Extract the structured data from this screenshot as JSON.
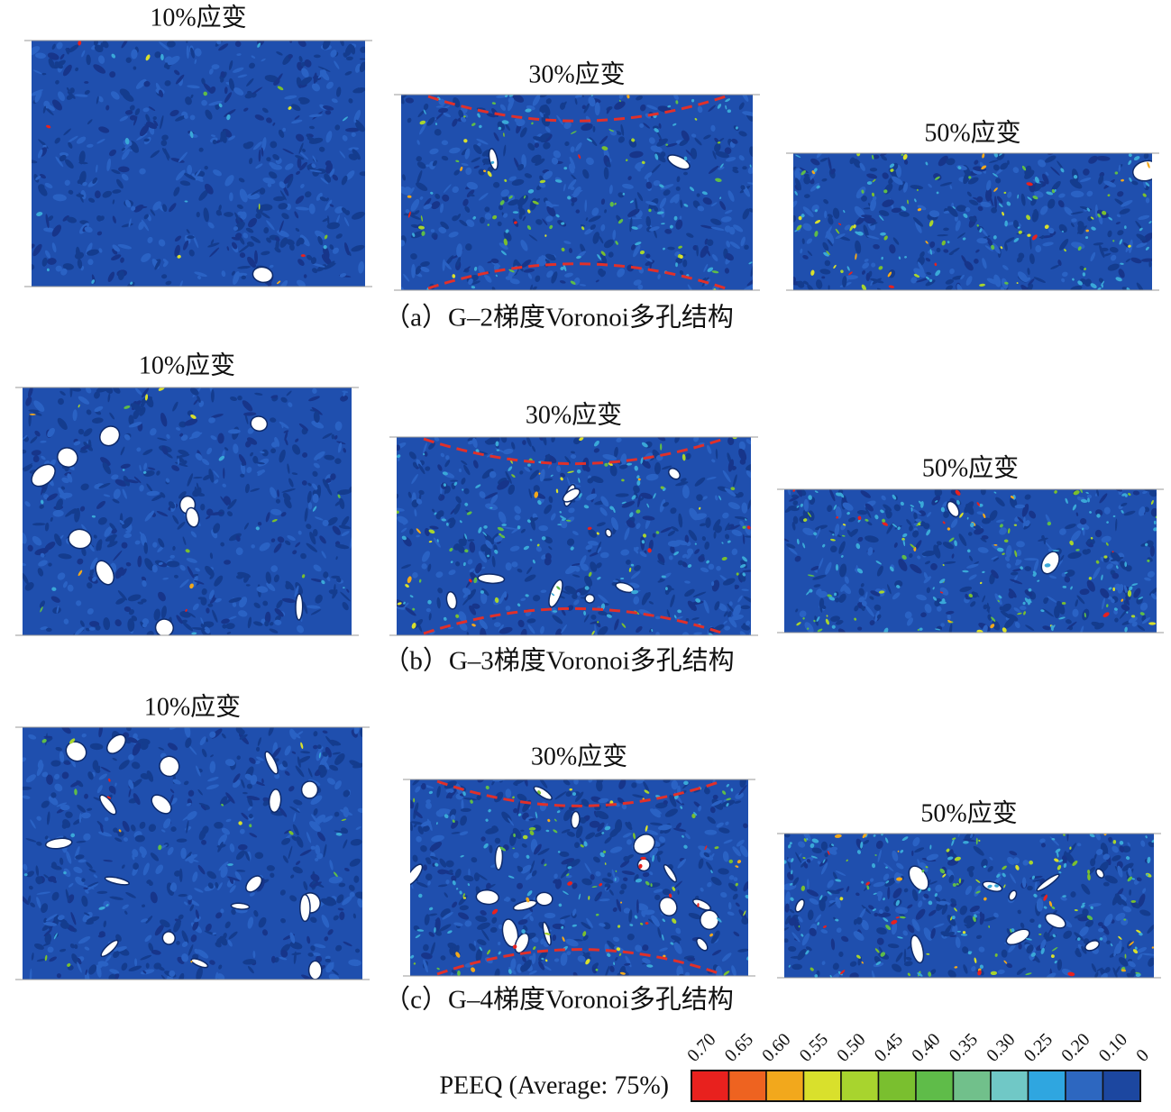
{
  "rows": [
    {
      "caption": "（a）G–2梯度Voronoi多孔结构",
      "panels": [
        {
          "label": "10%应变"
        },
        {
          "label": "30%应变"
        },
        {
          "label": "50%应变"
        }
      ]
    },
    {
      "caption": "（b）G–3梯度Voronoi多孔结构",
      "panels": [
        {
          "label": "10%应变"
        },
        {
          "label": "30%应变"
        },
        {
          "label": "50%应变"
        }
      ]
    },
    {
      "caption": "（c）G–4梯度Voronoi多孔结构",
      "panels": [
        {
          "label": "10%应变"
        },
        {
          "label": "30%应变"
        },
        {
          "label": "50%应变"
        }
      ]
    }
  ],
  "legend": {
    "title": "PEEQ (Average: 75%)",
    "labels": [
      "0.70",
      "0.65",
      "0.60",
      "0.55",
      "0.50",
      "0.45",
      "0.40",
      "0.35",
      "0.30",
      "0.25",
      "0.20",
      "0.10",
      "0"
    ],
    "colors": [
      "#e8211e",
      "#ee6320",
      "#f2a81c",
      "#d9e02c",
      "#a8d42e",
      "#7abf2f",
      "#5fbc49",
      "#71c08b",
      "#70c8c6",
      "#2fa6e0",
      "#2d67c0",
      "#1c47a0"
    ]
  }
}
